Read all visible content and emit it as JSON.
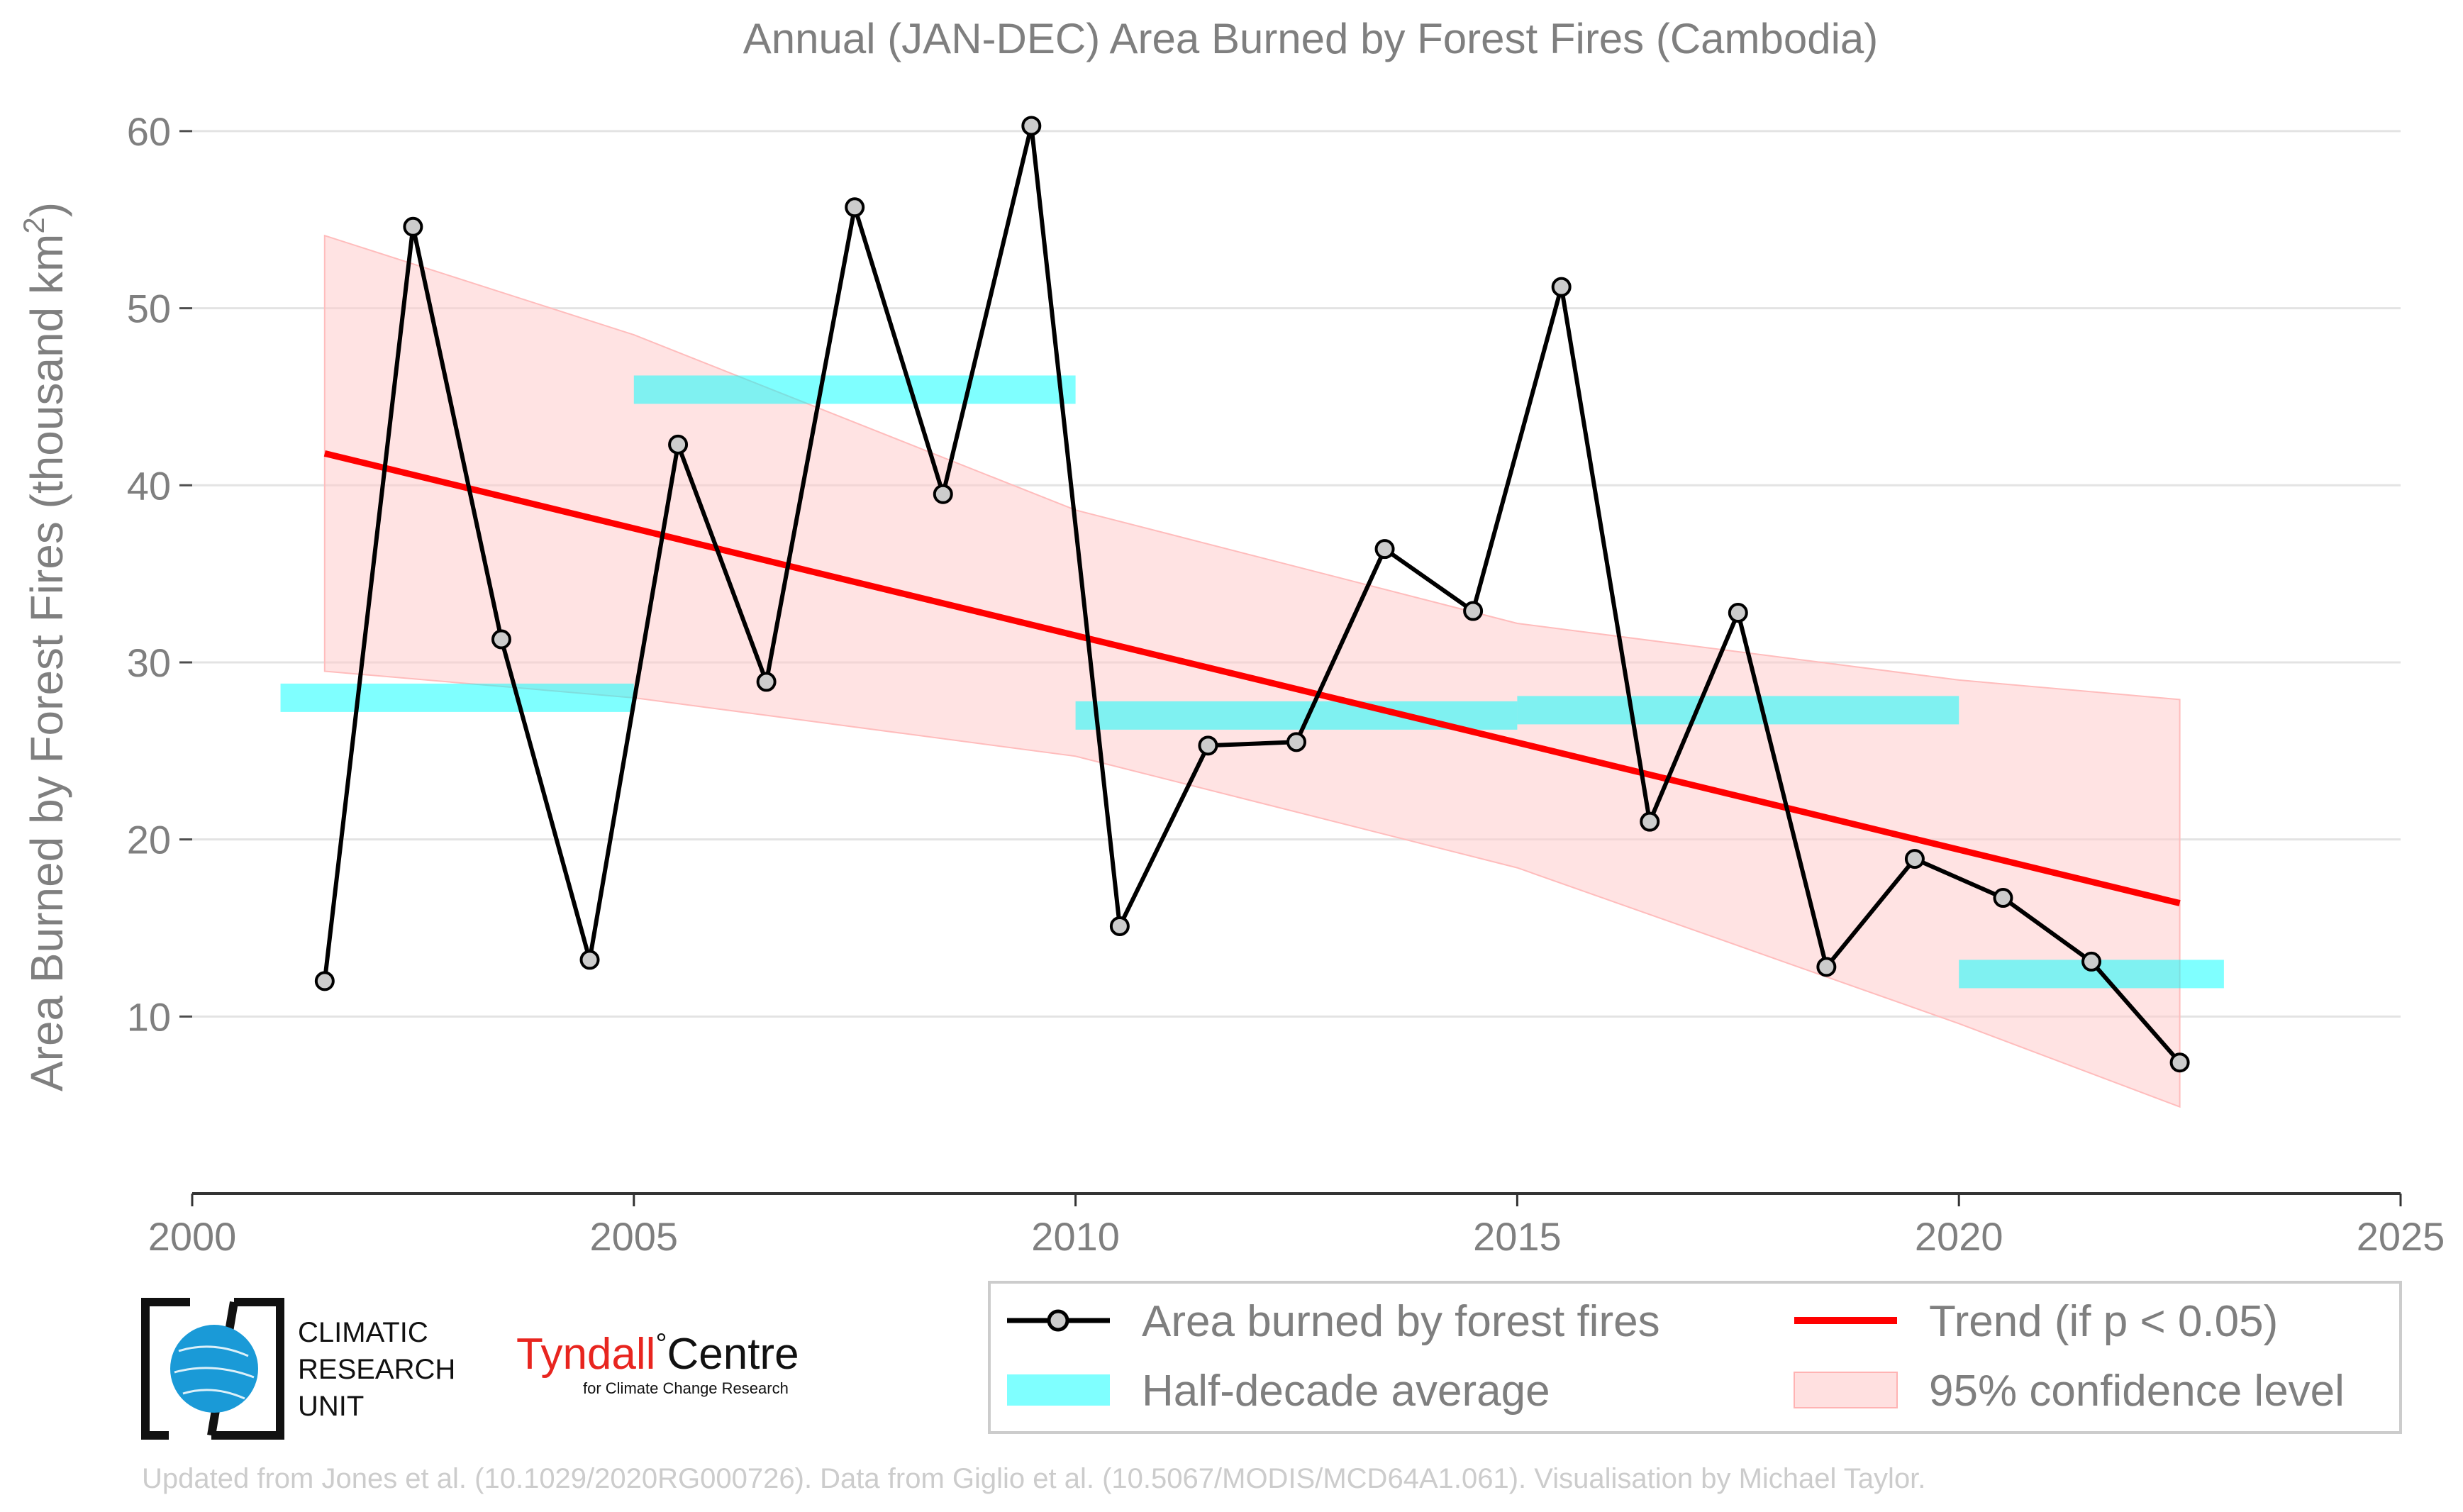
{
  "chart_data": {
    "type": "line",
    "title": "Annual (JAN-DEC) Area Burned by Forest Fires (Cambodia)",
    "xlabel": "",
    "ylabel": "Area Burned by Forest Fires (thousand km",
    "ylabel_sup": "2",
    "ylabel_end": ")",
    "xlim": [
      2000,
      2025
    ],
    "ylim": [
      0,
      62
    ],
    "xticks": [
      2000,
      2005,
      2010,
      2015,
      2020,
      2025
    ],
    "yticks": [
      10,
      20,
      30,
      40,
      50,
      60
    ],
    "grid": "horizontal",
    "legend_position": "bottom-right",
    "series": [
      {
        "name": "Area burned by forest fires",
        "color": "#000000",
        "marker_color": "#cccccc",
        "x": [
          2001.5,
          2002.5,
          2003.5,
          2004.5,
          2005.5,
          2006.5,
          2007.5,
          2008.5,
          2009.5,
          2010.5,
          2011.5,
          2012.5,
          2013.5,
          2014.5,
          2015.5,
          2016.5,
          2017.5,
          2018.5,
          2019.5,
          2020.5,
          2021.5,
          2022.5
        ],
        "values": [
          12.0,
          54.6,
          31.3,
          13.2,
          42.3,
          28.9,
          55.7,
          39.5,
          60.3,
          15.1,
          25.3,
          25.5,
          36.4,
          32.9,
          51.2,
          21.0,
          32.8,
          12.8,
          18.9,
          16.7,
          13.1,
          7.4
        ]
      },
      {
        "name": "Half-decade average",
        "color": "#00ffff",
        "segments": [
          {
            "x_start": 2001,
            "x_end": 2005,
            "value": 28.0
          },
          {
            "x_start": 2005,
            "x_end": 2010,
            "value": 45.4
          },
          {
            "x_start": 2010,
            "x_end": 2015,
            "value": 27.0
          },
          {
            "x_start": 2015,
            "x_end": 2020,
            "value": 27.3
          },
          {
            "x_start": 2020,
            "x_end": 2023,
            "value": 12.4
          }
        ]
      },
      {
        "name": "Trend (if p < 0.05)",
        "color": "#ff0000",
        "x": [
          2001.5,
          2022.5
        ],
        "values": [
          41.8,
          16.4
        ]
      },
      {
        "name": "95% confidence level",
        "color": "#ffcccc",
        "x": [
          2001.5,
          2005,
          2010,
          2015,
          2020,
          2022.5
        ],
        "upper": [
          54.1,
          48.5,
          38.6,
          32.2,
          29.0,
          27.9
        ],
        "lower": [
          29.5,
          28.0,
          24.7,
          18.4,
          9.6,
          4.9
        ]
      }
    ]
  },
  "logos": {
    "cru_lines": [
      "CLIMATIC",
      "RESEARCH",
      "UNIT"
    ],
    "tyndall_name": "Tyndall",
    "tyndall_degree": "°",
    "tyndall_centre": "Centre",
    "tyndall_sub": "for Climate Change Research",
    "tyndall_color": "#e8251f",
    "cru_globe_color": "#1a9ad7"
  },
  "credit": "Updated from Jones et al. (10.1029/2020RG000726). Data from Giglio et al. (10.5067/MODIS/MCD64A1.061). Visualisation by Michael Taylor."
}
